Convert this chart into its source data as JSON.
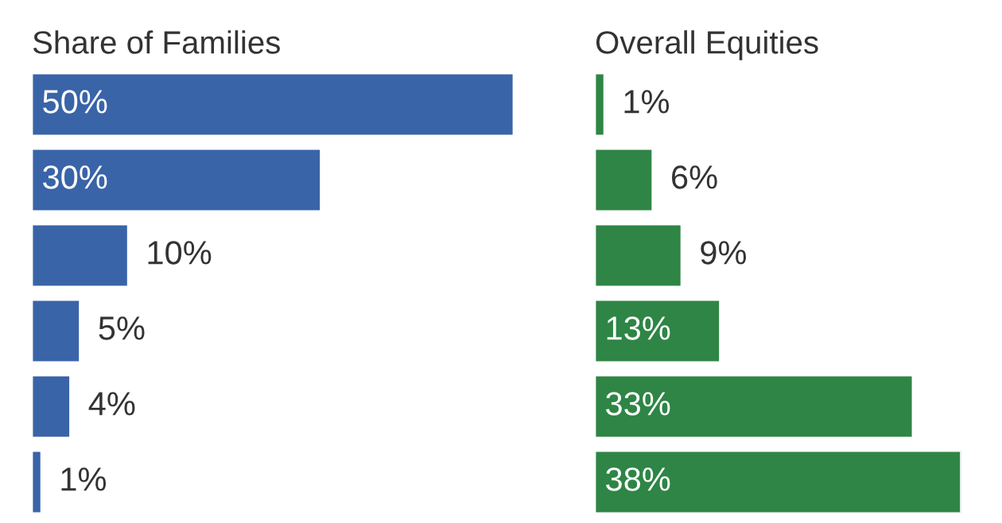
{
  "chart_data": [
    {
      "type": "bar",
      "orientation": "horizontal",
      "title": "Share of Families",
      "categories": [
        null,
        null,
        null,
        null,
        null,
        null
      ],
      "values": [
        50,
        30,
        10,
        5,
        4,
        1
      ],
      "color": "#3a64a8",
      "value_labels": [
        "50%",
        "30%",
        "10%",
        "5%",
        "4%",
        "1%"
      ]
    },
    {
      "type": "bar",
      "orientation": "horizontal",
      "title": "Overall Equities",
      "categories": [
        null,
        null,
        null,
        null,
        null,
        null
      ],
      "values": [
        1,
        6,
        9,
        13,
        33,
        38
      ],
      "color": "#2e8545",
      "value_labels": [
        "1%",
        "6%",
        "9%",
        "13%",
        "33%",
        "38%"
      ]
    }
  ]
}
